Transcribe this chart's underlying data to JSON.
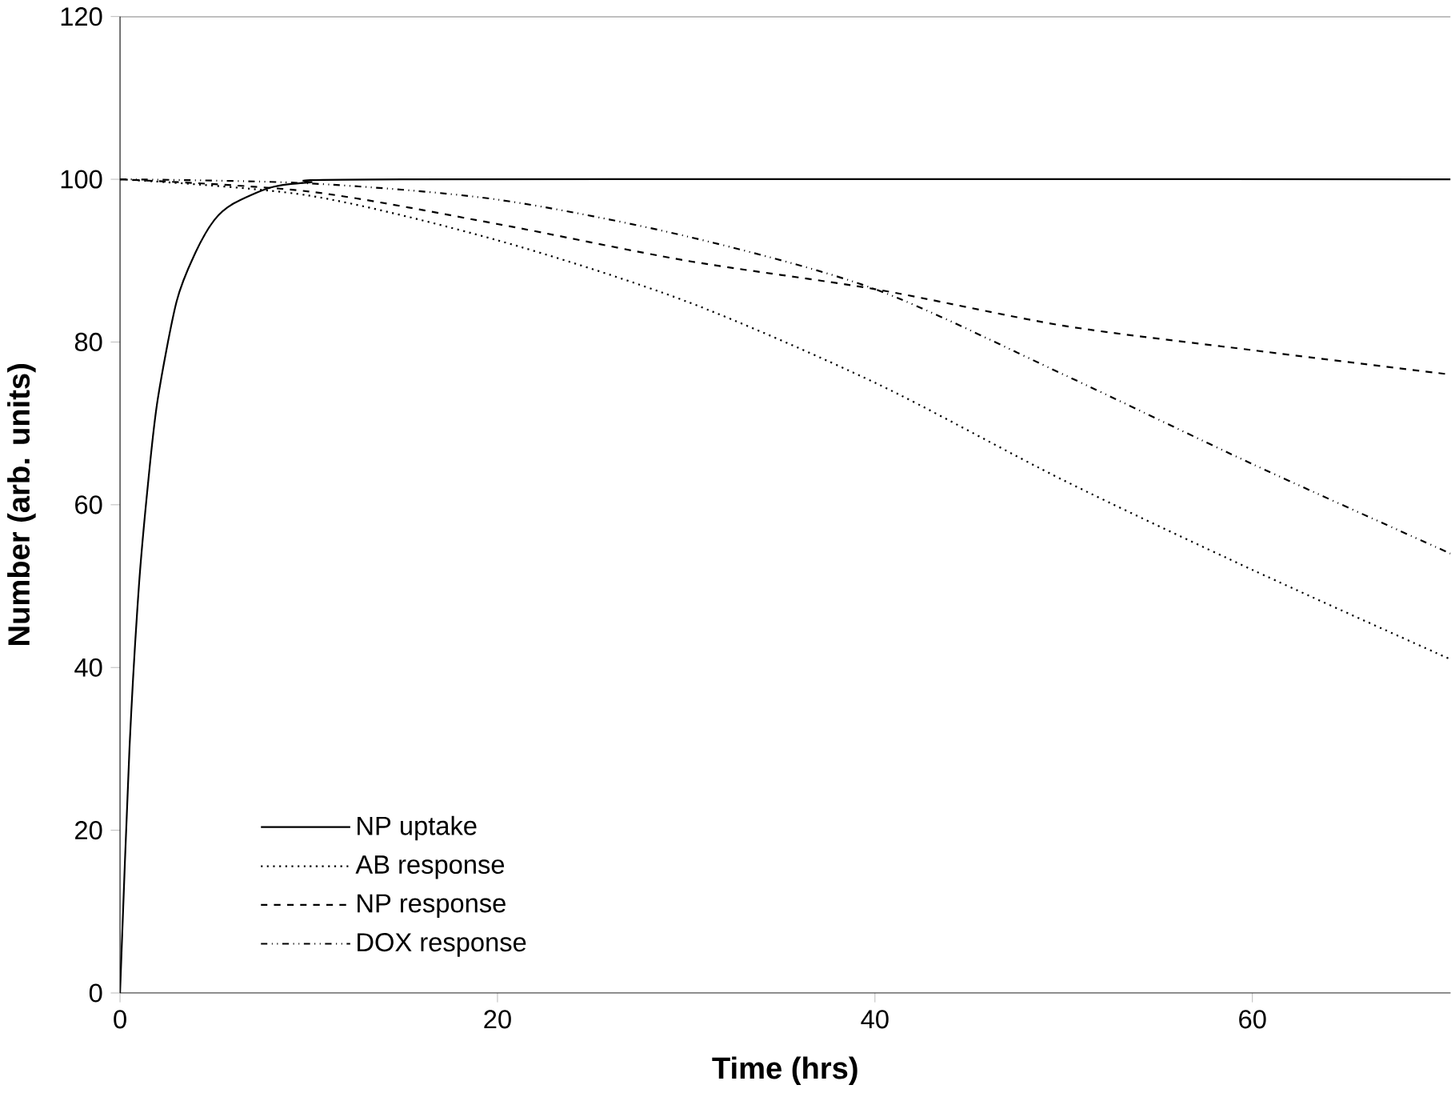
{
  "chart_data": {
    "type": "line",
    "xlabel": "Time (hrs)",
    "ylabel": "Number (arb. units)",
    "xlim": [
      0,
      70.5
    ],
    "ylim": [
      0,
      120
    ],
    "xticks": [
      0,
      20,
      40,
      60
    ],
    "yticks": [
      0,
      20,
      40,
      60,
      80,
      100,
      120
    ],
    "grid": false,
    "legend": "bottom left",
    "marker": "none",
    "series": [
      {
        "name": "NP uptake",
        "color": "#000000",
        "line_style": "solid",
        "x": [
          0,
          0.5,
          1,
          1.5,
          2,
          3,
          4,
          5,
          6,
          8,
          10,
          15,
          70.5
        ],
        "values": [
          0,
          30,
          50,
          63,
          73,
          85,
          91,
          95,
          97,
          99,
          99.6,
          100,
          100
        ]
      },
      {
        "name": "AB response",
        "color": "#000000",
        "line_style": "dotted",
        "x": [
          0,
          10,
          20,
          30,
          40,
          50,
          60,
          70.5
        ],
        "values": [
          100,
          98,
          92.5,
          85,
          75,
          63,
          52,
          41
        ]
      },
      {
        "name": "NP response",
        "color": "#000000",
        "line_style": "dashed",
        "x": [
          0,
          10,
          20,
          30,
          40,
          50,
          60,
          70.5
        ],
        "values": [
          100,
          98.5,
          94.5,
          90,
          86.5,
          82,
          79,
          76
        ]
      },
      {
        "name": "DOX response",
        "color": "#000000",
        "line_style": "dashdot",
        "x": [
          0,
          10,
          20,
          30,
          40,
          50,
          60,
          70.5
        ],
        "values": [
          100,
          99.5,
          97.5,
          93,
          86.5,
          76,
          65,
          54
        ]
      }
    ]
  }
}
